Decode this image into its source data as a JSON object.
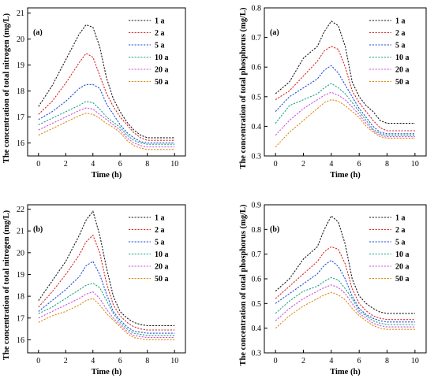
{
  "colors": {
    "1 a": "#1a1a1a",
    "2 a": "#d62728",
    "5 a": "#1f4fd8",
    "10 a": "#17a589",
    "20 a": "#d04fe0",
    "50 a": "#e08a10"
  },
  "chart_data": [
    {
      "type": "line",
      "panel_label": "(a)",
      "xlabel": "Time (h)",
      "ylabel": "The concentration of total nitrogen (mg/L)",
      "xlim": [
        -0.8,
        10.8
      ],
      "ylim": [
        15.5,
        21.2
      ],
      "xticks": [
        0,
        2,
        4,
        6,
        8,
        10
      ],
      "yticks": [
        16,
        17,
        18,
        19,
        20,
        21
      ],
      "x": [
        0,
        1,
        2,
        3,
        3.5,
        4,
        4.5,
        5,
        5.5,
        6,
        6.5,
        7,
        7.5,
        8,
        9,
        10
      ],
      "series": [
        {
          "name": "1 a",
          "values": [
            17.4,
            18.2,
            19.2,
            20.2,
            20.55,
            20.45,
            19.7,
            18.5,
            17.7,
            17.2,
            16.8,
            16.5,
            16.3,
            16.2,
            16.2,
            16.2
          ]
        },
        {
          "name": "2 a",
          "values": [
            17.1,
            17.6,
            18.3,
            19.1,
            19.45,
            19.3,
            18.6,
            17.9,
            17.4,
            17.0,
            16.7,
            16.4,
            16.2,
            16.1,
            16.1,
            16.1
          ]
        },
        {
          "name": "5 a",
          "values": [
            16.9,
            17.2,
            17.6,
            18.1,
            18.25,
            18.25,
            18.1,
            17.5,
            17.1,
            16.7,
            16.4,
            16.2,
            16.05,
            16.0,
            16.0,
            16.0
          ]
        },
        {
          "name": "10 a",
          "values": [
            16.7,
            16.95,
            17.2,
            17.45,
            17.6,
            17.55,
            17.3,
            17.0,
            16.8,
            16.6,
            16.3,
            16.1,
            16.0,
            15.95,
            15.95,
            15.95
          ]
        },
        {
          "name": "20 a",
          "values": [
            16.5,
            16.75,
            17.0,
            17.25,
            17.35,
            17.3,
            17.1,
            16.9,
            16.7,
            16.5,
            16.2,
            16.0,
            15.9,
            15.85,
            15.85,
            15.85
          ]
        },
        {
          "name": "50 a",
          "values": [
            16.3,
            16.55,
            16.8,
            17.05,
            17.15,
            17.1,
            16.95,
            16.75,
            16.6,
            16.4,
            16.1,
            15.9,
            15.8,
            15.75,
            15.75,
            15.75
          ]
        }
      ],
      "legend_position": "top-right"
    },
    {
      "type": "line",
      "panel_label": "(a)",
      "xlabel": "Time (h)",
      "ylabel": "The concentration of total phosphorus (mg/L)",
      "xlim": [
        -0.8,
        10.8
      ],
      "ylim": [
        0.3,
        0.8
      ],
      "xticks": [
        0,
        2,
        4,
        6,
        8,
        10
      ],
      "yticks": [
        0.3,
        0.4,
        0.5,
        0.6,
        0.7,
        0.8
      ],
      "x": [
        0,
        1,
        2,
        3,
        3.5,
        4,
        4.5,
        5,
        5.5,
        6,
        6.5,
        7,
        7.5,
        8,
        9,
        10
      ],
      "series": [
        {
          "name": "1 a",
          "values": [
            0.51,
            0.55,
            0.63,
            0.67,
            0.72,
            0.755,
            0.74,
            0.67,
            0.55,
            0.5,
            0.47,
            0.45,
            0.42,
            0.41,
            0.41,
            0.41
          ]
        },
        {
          "name": "2 a",
          "values": [
            0.49,
            0.52,
            0.57,
            0.62,
            0.655,
            0.67,
            0.66,
            0.6,
            0.52,
            0.48,
            0.45,
            0.42,
            0.395,
            0.385,
            0.385,
            0.385
          ]
        },
        {
          "name": "5 a",
          "values": [
            0.45,
            0.5,
            0.53,
            0.56,
            0.59,
            0.605,
            0.58,
            0.54,
            0.5,
            0.46,
            0.43,
            0.4,
            0.38,
            0.375,
            0.375,
            0.375
          ]
        },
        {
          "name": "10 a",
          "values": [
            0.41,
            0.47,
            0.49,
            0.51,
            0.53,
            0.545,
            0.53,
            0.51,
            0.48,
            0.45,
            0.42,
            0.39,
            0.375,
            0.37,
            0.37,
            0.37
          ]
        },
        {
          "name": "20 a",
          "values": [
            0.37,
            0.42,
            0.46,
            0.49,
            0.505,
            0.515,
            0.505,
            0.49,
            0.465,
            0.44,
            0.41,
            0.385,
            0.37,
            0.365,
            0.365,
            0.365
          ]
        },
        {
          "name": "50 a",
          "values": [
            0.33,
            0.38,
            0.42,
            0.46,
            0.48,
            0.49,
            0.485,
            0.47,
            0.45,
            0.43,
            0.4,
            0.38,
            0.365,
            0.36,
            0.36,
            0.36
          ]
        }
      ],
      "legend_position": "top-right"
    },
    {
      "type": "line",
      "panel_label": "(b)",
      "xlabel": "Time (h)",
      "ylabel": "The concentration of total nitrogen (mg/L)",
      "xlim": [
        -0.8,
        10.8
      ],
      "ylim": [
        15.4,
        22.2
      ],
      "xticks": [
        0,
        2,
        4,
        6,
        8,
        10
      ],
      "yticks": [
        16,
        17,
        18,
        19,
        20,
        21,
        22
      ],
      "x": [
        0,
        1,
        2,
        3,
        3.5,
        4,
        4.5,
        5,
        5.5,
        6,
        6.5,
        7,
        7.5,
        8,
        9,
        10
      ],
      "series": [
        {
          "name": "1 a",
          "values": [
            17.8,
            18.7,
            19.6,
            20.8,
            21.5,
            21.9,
            20.8,
            19.3,
            18.0,
            17.3,
            17.0,
            16.8,
            16.7,
            16.65,
            16.65,
            16.65
          ]
        },
        {
          "name": "2 a",
          "values": [
            17.5,
            18.2,
            19.0,
            19.9,
            20.5,
            20.8,
            20.0,
            18.6,
            17.6,
            17.1,
            16.8,
            16.6,
            16.5,
            16.45,
            16.45,
            16.45
          ]
        },
        {
          "name": "5 a",
          "values": [
            17.3,
            17.8,
            18.3,
            18.9,
            19.4,
            19.6,
            19.0,
            18.1,
            17.3,
            16.9,
            16.6,
            16.4,
            16.35,
            16.3,
            16.3,
            16.3
          ]
        },
        {
          "name": "10 a",
          "values": [
            17.2,
            17.5,
            17.9,
            18.3,
            18.5,
            18.6,
            18.4,
            17.8,
            17.2,
            16.8,
            16.5,
            16.3,
            16.25,
            16.2,
            16.2,
            16.2
          ]
        },
        {
          "name": "20 a",
          "values": [
            17.0,
            17.3,
            17.6,
            17.9,
            18.1,
            18.2,
            17.9,
            17.4,
            17.0,
            16.7,
            16.4,
            16.2,
            16.15,
            16.1,
            16.1,
            16.1
          ]
        },
        {
          "name": "50 a",
          "values": [
            16.8,
            17.1,
            17.3,
            17.6,
            17.8,
            17.9,
            17.6,
            17.2,
            16.9,
            16.6,
            16.3,
            16.1,
            16.05,
            16.0,
            16.0,
            16.0
          ]
        }
      ],
      "legend_position": "top-right"
    },
    {
      "type": "line",
      "panel_label": "(b)",
      "xlabel": "Time (h)",
      "ylabel": "The concentration of total phosphorus (mg/L)",
      "xlim": [
        -0.8,
        10.8
      ],
      "ylim": [
        0.3,
        0.9
      ],
      "xticks": [
        0,
        2,
        4,
        6,
        8,
        10
      ],
      "yticks": [
        0.3,
        0.4,
        0.5,
        0.6,
        0.7,
        0.8,
        0.9
      ],
      "x": [
        0,
        1,
        2,
        3,
        3.5,
        4,
        4.5,
        5,
        5.5,
        6,
        6.5,
        7,
        7.5,
        8,
        9,
        10
      ],
      "series": [
        {
          "name": "1 a",
          "values": [
            0.55,
            0.6,
            0.68,
            0.73,
            0.8,
            0.855,
            0.83,
            0.74,
            0.6,
            0.53,
            0.5,
            0.48,
            0.465,
            0.46,
            0.46,
            0.46
          ]
        },
        {
          "name": "2 a",
          "values": [
            0.52,
            0.57,
            0.62,
            0.67,
            0.71,
            0.73,
            0.72,
            0.66,
            0.56,
            0.5,
            0.47,
            0.45,
            0.44,
            0.435,
            0.435,
            0.435
          ]
        },
        {
          "name": "5 a",
          "values": [
            0.5,
            0.54,
            0.58,
            0.62,
            0.655,
            0.675,
            0.65,
            0.6,
            0.53,
            0.48,
            0.455,
            0.44,
            0.43,
            0.425,
            0.425,
            0.425
          ]
        },
        {
          "name": "10 a",
          "values": [
            0.46,
            0.51,
            0.55,
            0.57,
            0.59,
            0.605,
            0.595,
            0.56,
            0.52,
            0.47,
            0.45,
            0.43,
            0.42,
            0.415,
            0.415,
            0.415
          ]
        },
        {
          "name": "20 a",
          "values": [
            0.43,
            0.48,
            0.52,
            0.55,
            0.565,
            0.575,
            0.565,
            0.54,
            0.5,
            0.46,
            0.44,
            0.42,
            0.41,
            0.405,
            0.405,
            0.405
          ]
        },
        {
          "name": "50 a",
          "values": [
            0.4,
            0.45,
            0.49,
            0.52,
            0.535,
            0.545,
            0.535,
            0.515,
            0.48,
            0.45,
            0.43,
            0.41,
            0.4,
            0.395,
            0.395,
            0.395
          ]
        }
      ],
      "legend_position": "top-right"
    }
  ]
}
